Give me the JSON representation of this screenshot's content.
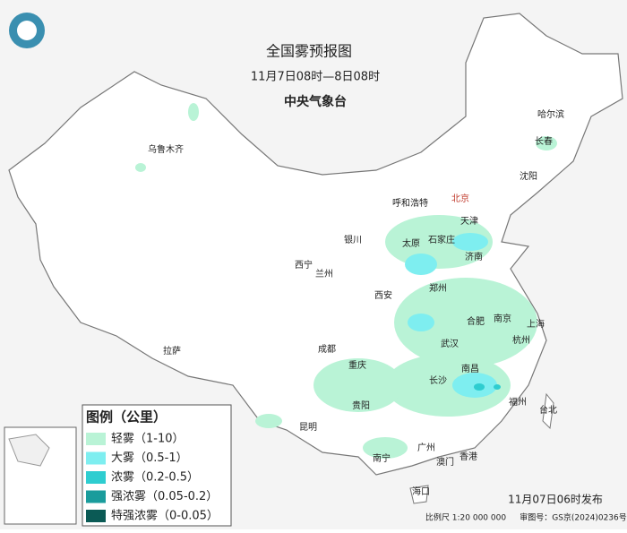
{
  "header": {
    "title": "全国雾预报图",
    "subtitle": "11月7日08时—8日08时",
    "issuer": "中央气象台"
  },
  "cities": [
    {
      "label": "乌鲁木齐"
    },
    {
      "label": "哈尔滨"
    },
    {
      "label": "长春"
    },
    {
      "label": "沈阳"
    },
    {
      "label": "呼和浩特"
    },
    {
      "label": "北京"
    },
    {
      "label": "天津"
    },
    {
      "label": "石家庄"
    },
    {
      "label": "太原"
    },
    {
      "label": "银川"
    },
    {
      "label": "济南"
    },
    {
      "label": "西宁"
    },
    {
      "label": "兰州"
    },
    {
      "label": "郑州"
    },
    {
      "label": "西安"
    },
    {
      "label": "南京"
    },
    {
      "label": "合肥"
    },
    {
      "label": "上海"
    },
    {
      "label": "成都"
    },
    {
      "label": "武汉"
    },
    {
      "label": "杭州"
    },
    {
      "label": "拉萨"
    },
    {
      "label": "重庆"
    },
    {
      "label": "长沙"
    },
    {
      "label": "南昌"
    },
    {
      "label": "福州"
    },
    {
      "label": "台北"
    },
    {
      "label": "贵阳"
    },
    {
      "label": "昆明"
    },
    {
      "label": "广州"
    },
    {
      "label": "南宁"
    },
    {
      "label": "香港"
    },
    {
      "label": "澳门"
    },
    {
      "label": "海口"
    }
  ],
  "legend": {
    "title": "图例（公里）",
    "items": [
      {
        "label": "轻雾（1-10）",
        "color": "#b9f3d6"
      },
      {
        "label": "大雾（0.5-1）",
        "color": "#7eeef0"
      },
      {
        "label": "浓雾（0.2-0.5）",
        "color": "#2ecdd0"
      },
      {
        "label": "强浓雾（0.05-0.2）",
        "color": "#1a9c9c"
      },
      {
        "label": "特强浓雾（0-0.05）",
        "color": "#0b5a55"
      }
    ]
  },
  "footer": {
    "issued": "11月07日06时发布",
    "scale": "比例尺 1:20 000 000",
    "map_number": "审图号：GS京(2024)0236号"
  }
}
